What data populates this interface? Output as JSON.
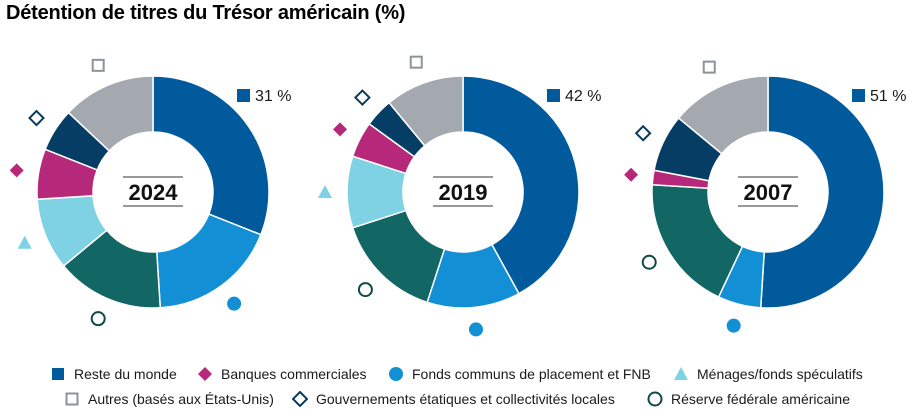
{
  "title": "Détention de titres du Trésor américain (%)",
  "colors": {
    "reste_du_monde": "#005a9c",
    "fonds_communs": "#138fd6",
    "reserve_federale": "#126663",
    "menages": "#7fd2e4",
    "banques": "#b6287a",
    "gouvernements": "#053d64",
    "autres": "#a3a9ae",
    "marker_outline": "#0f4a44",
    "marker_gov": "#0b3a5c",
    "marker_autres": "#8c9399"
  },
  "chart_data": [
    {
      "type": "pie",
      "year": "2024",
      "highlight_label": "31 %",
      "slices": [
        {
          "series": "Reste du monde",
          "value": 31
        },
        {
          "series": "Fonds communs de placement et FNB",
          "value": 18
        },
        {
          "series": "Réserve fédérale américaine",
          "value": 15
        },
        {
          "series": "Ménages/fonds spéculatifs",
          "value": 10
        },
        {
          "series": "Banques commerciales",
          "value": 7
        },
        {
          "series": "Gouvernements étatiques et collectivités locales",
          "value": 6
        },
        {
          "series": "Autres (basés aux États-Unis)",
          "value": 13
        }
      ]
    },
    {
      "type": "pie",
      "year": "2019",
      "highlight_label": "42 %",
      "slices": [
        {
          "series": "Reste du monde",
          "value": 42
        },
        {
          "series": "Fonds communs de placement et FNB",
          "value": 13
        },
        {
          "series": "Réserve fédérale américaine",
          "value": 15
        },
        {
          "series": "Ménages/fonds spéculatifs",
          "value": 10
        },
        {
          "series": "Banques commerciales",
          "value": 5
        },
        {
          "series": "Gouvernements étatiques et collectivités locales",
          "value": 4
        },
        {
          "series": "Autres (basés aux États-Unis)",
          "value": 11
        }
      ]
    },
    {
      "type": "pie",
      "year": "2007",
      "highlight_label": "51 %",
      "slices": [
        {
          "series": "Reste du monde",
          "value": 51
        },
        {
          "series": "Fonds communs de placement et FNB",
          "value": 6
        },
        {
          "series": "Réserve fédérale américaine",
          "value": 19
        },
        {
          "series": "Ménages/fonds spéculatifs",
          "value": 0
        },
        {
          "series": "Banques commerciales",
          "value": 2
        },
        {
          "series": "Gouvernements étatiques et collectivités locales",
          "value": 8
        },
        {
          "series": "Autres (basés aux États-Unis)",
          "value": 14
        }
      ]
    }
  ],
  "legend": [
    {
      "label": "Reste du monde",
      "shape": "square",
      "color_key": "reste_du_monde"
    },
    {
      "label": "Banques commerciales",
      "shape": "diamond",
      "color_key": "banques"
    },
    {
      "label": "Fonds communs de placement et FNB",
      "shape": "circle",
      "color_key": "fonds_communs"
    },
    {
      "label": "Ménages/fonds spéculatifs",
      "shape": "triangle",
      "color_key": "menages"
    },
    {
      "label": "Autres (basés aux États-Unis)",
      "shape": "square-outline",
      "color_key": "marker_autres"
    },
    {
      "label": "Gouvernements étatiques et collectivités locales",
      "shape": "diamond-outline",
      "color_key": "marker_gov"
    },
    {
      "label": "Réserve fédérale américaine",
      "shape": "circle-outline",
      "color_key": "marker_outline"
    }
  ]
}
